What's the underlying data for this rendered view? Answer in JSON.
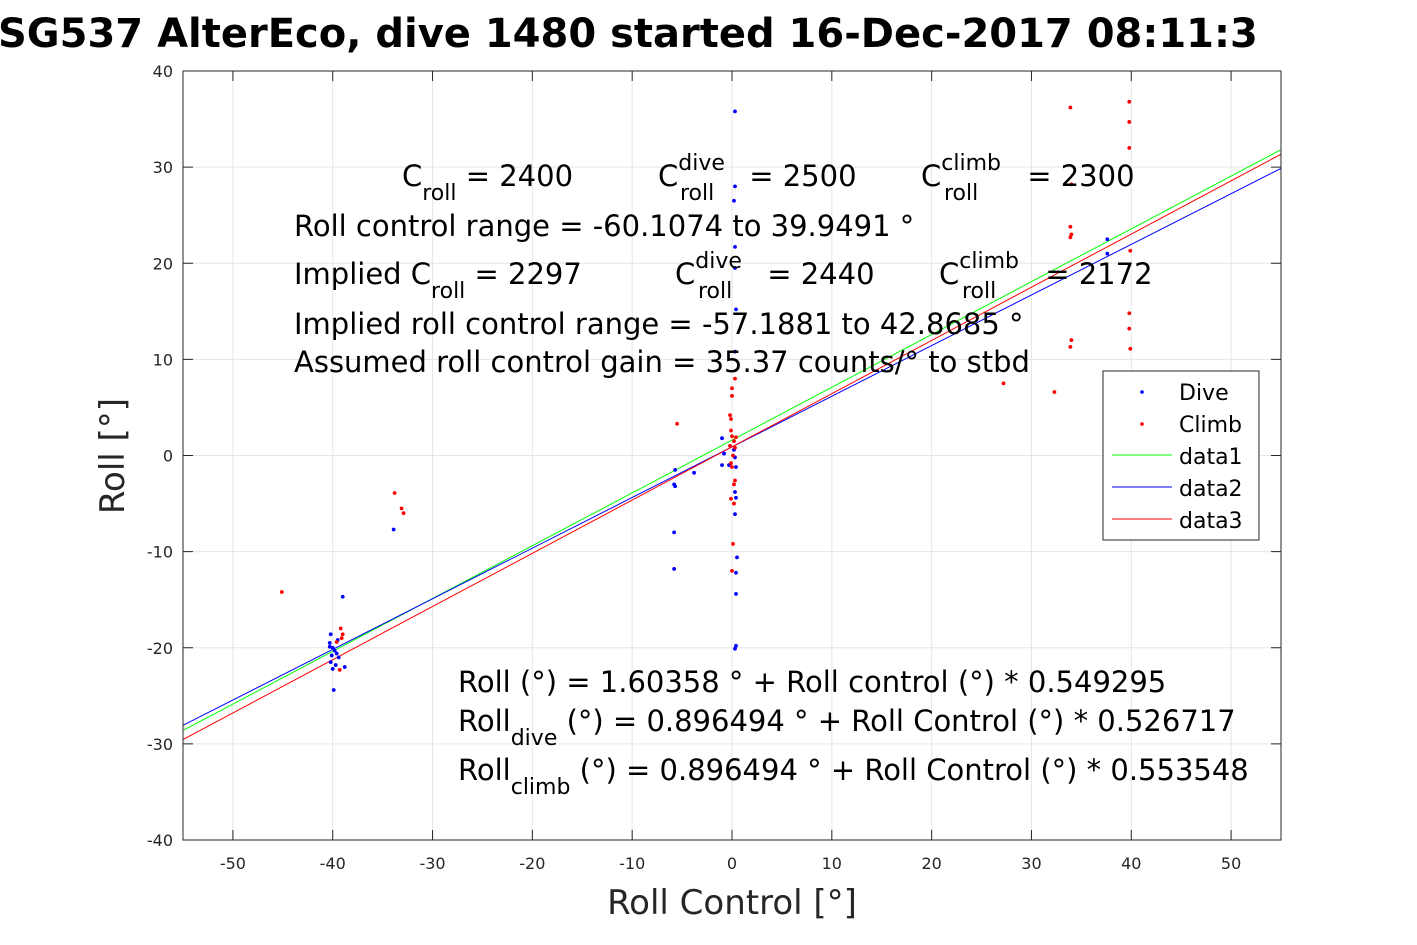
{
  "chart_data": {
    "type": "scatter",
    "title": "SG537 AlterEco, dive 1480 started 16-Dec-2017 08:11:3",
    "xlabel": "Roll Control [°]",
    "ylabel": "Roll [°]",
    "xlim": [
      -55,
      55
    ],
    "ylim": [
      -40,
      40
    ],
    "xticks": [
      -50,
      -40,
      -30,
      -20,
      -10,
      0,
      10,
      20,
      30,
      40,
      50
    ],
    "yticks": [
      -40,
      -30,
      -20,
      -10,
      0,
      10,
      20,
      30,
      40
    ],
    "grid": true,
    "legend_position": "right",
    "colors": {
      "dive": "#0000ff",
      "climb": "#ff0000",
      "data1": "#00ff00",
      "data2": "#0000ff",
      "data3": "#ff0000"
    },
    "series": [
      {
        "name": "Dive",
        "style": "dots",
        "color": "#0000ff",
        "points": [
          [
            -40.2,
            -18.6
          ],
          [
            -40.3,
            -19.5
          ],
          [
            -40.0,
            -20.0
          ],
          [
            -40.1,
            -20.8
          ],
          [
            -40.2,
            -21.5
          ],
          [
            -40.0,
            -22.2
          ],
          [
            -39.9,
            -24.4
          ],
          [
            -39.5,
            -19.2
          ],
          [
            -39.4,
            -21.0
          ],
          [
            -39.0,
            -14.7
          ],
          [
            -38.8,
            -22.0
          ],
          [
            -39.8,
            -20.3
          ],
          [
            -40.3,
            -19.9
          ],
          [
            -39.7,
            -21.8
          ],
          [
            -39.6,
            -20.6
          ],
          [
            -33.9,
            -7.7
          ],
          [
            -5.7,
            -1.5
          ],
          [
            -5.8,
            -3.0
          ],
          [
            -5.7,
            -3.2
          ],
          [
            -5.8,
            -8.0
          ],
          [
            -5.8,
            -11.8
          ],
          [
            -3.8,
            -1.8
          ],
          [
            -1.0,
            1.8
          ],
          [
            -1.0,
            -1.0
          ],
          [
            -0.8,
            0.2
          ],
          [
            0.3,
            35.8
          ],
          [
            0.3,
            28.0
          ],
          [
            0.2,
            26.5
          ],
          [
            0.3,
            21.7
          ],
          [
            0.3,
            19.5
          ],
          [
            0.4,
            15.2
          ],
          [
            0.3,
            10.8
          ],
          [
            0.2,
            0.6
          ],
          [
            0.3,
            -0.2
          ],
          [
            0.4,
            -1.2
          ],
          [
            0.3,
            -3.8
          ],
          [
            0.4,
            -4.4
          ],
          [
            0.3,
            -6.1
          ],
          [
            0.5,
            -10.6
          ],
          [
            0.4,
            -12.2
          ],
          [
            0.4,
            -14.4
          ],
          [
            0.4,
            -19.8
          ],
          [
            0.3,
            -20.1
          ],
          [
            -0.3,
            -1.0
          ],
          [
            37.6,
            22.5
          ],
          [
            37.6,
            21.0
          ]
        ]
      },
      {
        "name": "Climb",
        "style": "dots",
        "color": "#ff0000",
        "points": [
          [
            -45.1,
            -14.2
          ],
          [
            -39.2,
            -18.0
          ],
          [
            -39.0,
            -18.6
          ],
          [
            -39.1,
            -19.0
          ],
          [
            -39.3,
            -22.3
          ],
          [
            -39.6,
            -19.4
          ],
          [
            -33.8,
            -3.9
          ],
          [
            -33.1,
            -5.5
          ],
          [
            -32.9,
            -6.0
          ],
          [
            -5.5,
            3.3
          ],
          [
            0.3,
            8.0
          ],
          [
            0.0,
            7.0
          ],
          [
            0.0,
            6.2
          ],
          [
            -0.2,
            4.2
          ],
          [
            -0.1,
            3.8
          ],
          [
            -0.1,
            2.6
          ],
          [
            0.0,
            2.0
          ],
          [
            0.2,
            1.5
          ],
          [
            0.3,
            0.8
          ],
          [
            0.1,
            0.0
          ],
          [
            -0.1,
            -0.8
          ],
          [
            0.0,
            -1.2
          ],
          [
            0.3,
            -2.6
          ],
          [
            0.2,
            -3.0
          ],
          [
            -0.1,
            -4.5
          ],
          [
            0.2,
            -5.0
          ],
          [
            0.1,
            -9.2
          ],
          [
            0.0,
            -12.0
          ],
          [
            -0.2,
            1.0
          ],
          [
            0.4,
            1.9
          ],
          [
            27.2,
            7.5
          ],
          [
            32.3,
            6.6
          ],
          [
            33.9,
            36.2
          ],
          [
            34.0,
            28.2
          ],
          [
            33.9,
            23.8
          ],
          [
            34.0,
            23.0
          ],
          [
            33.9,
            22.7
          ],
          [
            34.0,
            12.0
          ],
          [
            33.9,
            11.3
          ],
          [
            39.8,
            36.8
          ],
          [
            39.8,
            34.7
          ],
          [
            39.8,
            32.0
          ],
          [
            39.9,
            21.3
          ],
          [
            39.8,
            14.8
          ],
          [
            39.8,
            13.2
          ],
          [
            39.9,
            11.1
          ]
        ]
      },
      {
        "name": "data1",
        "style": "line",
        "color": "#00ff00",
        "x": [
          -55,
          55
        ],
        "intercept": 1.60358,
        "slope": 0.549295
      },
      {
        "name": "data2",
        "style": "line",
        "color": "#0000ff",
        "x": [
          -55,
          55
        ],
        "intercept": 0.896494,
        "slope": 0.526717
      },
      {
        "name": "data3",
        "style": "line",
        "color": "#ff0000",
        "x": [
          -55,
          55
        ],
        "intercept": 0.896494,
        "slope": 0.553548
      }
    ],
    "annotations": {
      "c_roll": {
        "base": "C",
        "sub": "roll",
        "rest": " = 2400"
      },
      "c_roll_dive": {
        "base": "C",
        "sup": "dive",
        "sub": "roll",
        "rest": " = 2500"
      },
      "c_roll_climb": {
        "base": "C",
        "sup": "climb",
        "sub": "roll",
        "rest": " = 2300"
      },
      "range": "Roll control range = -60.1074 to 39.9491 °",
      "implied_c_roll": {
        "base": "Implied C",
        "sub": "roll",
        "rest": " = 2297"
      },
      "implied_c_roll_dive": {
        "base": "C",
        "sup": "dive",
        "sub": "roll",
        "rest": " = 2440"
      },
      "implied_c_roll_climb": {
        "base": "C",
        "sup": "climb",
        "sub": "roll",
        "rest": " = 2172"
      },
      "implied_range": "Implied roll control range = -57.1881 to 42.8685 °",
      "gain": "Assumed roll control gain = 35.37 counts/° to stbd",
      "fit_all": "Roll (°) = 1.60358 ° + Roll control (°) * 0.549295",
      "fit_dive": {
        "base": "Roll",
        "sub": "dive",
        "rest": " (°) = 0.896494 ° + Roll Control (°) * 0.526717"
      },
      "fit_climb": {
        "base": "Roll",
        "sub": "climb",
        "rest": " (°) = 0.896494 ° + Roll Control (°) * 0.553548"
      }
    }
  }
}
